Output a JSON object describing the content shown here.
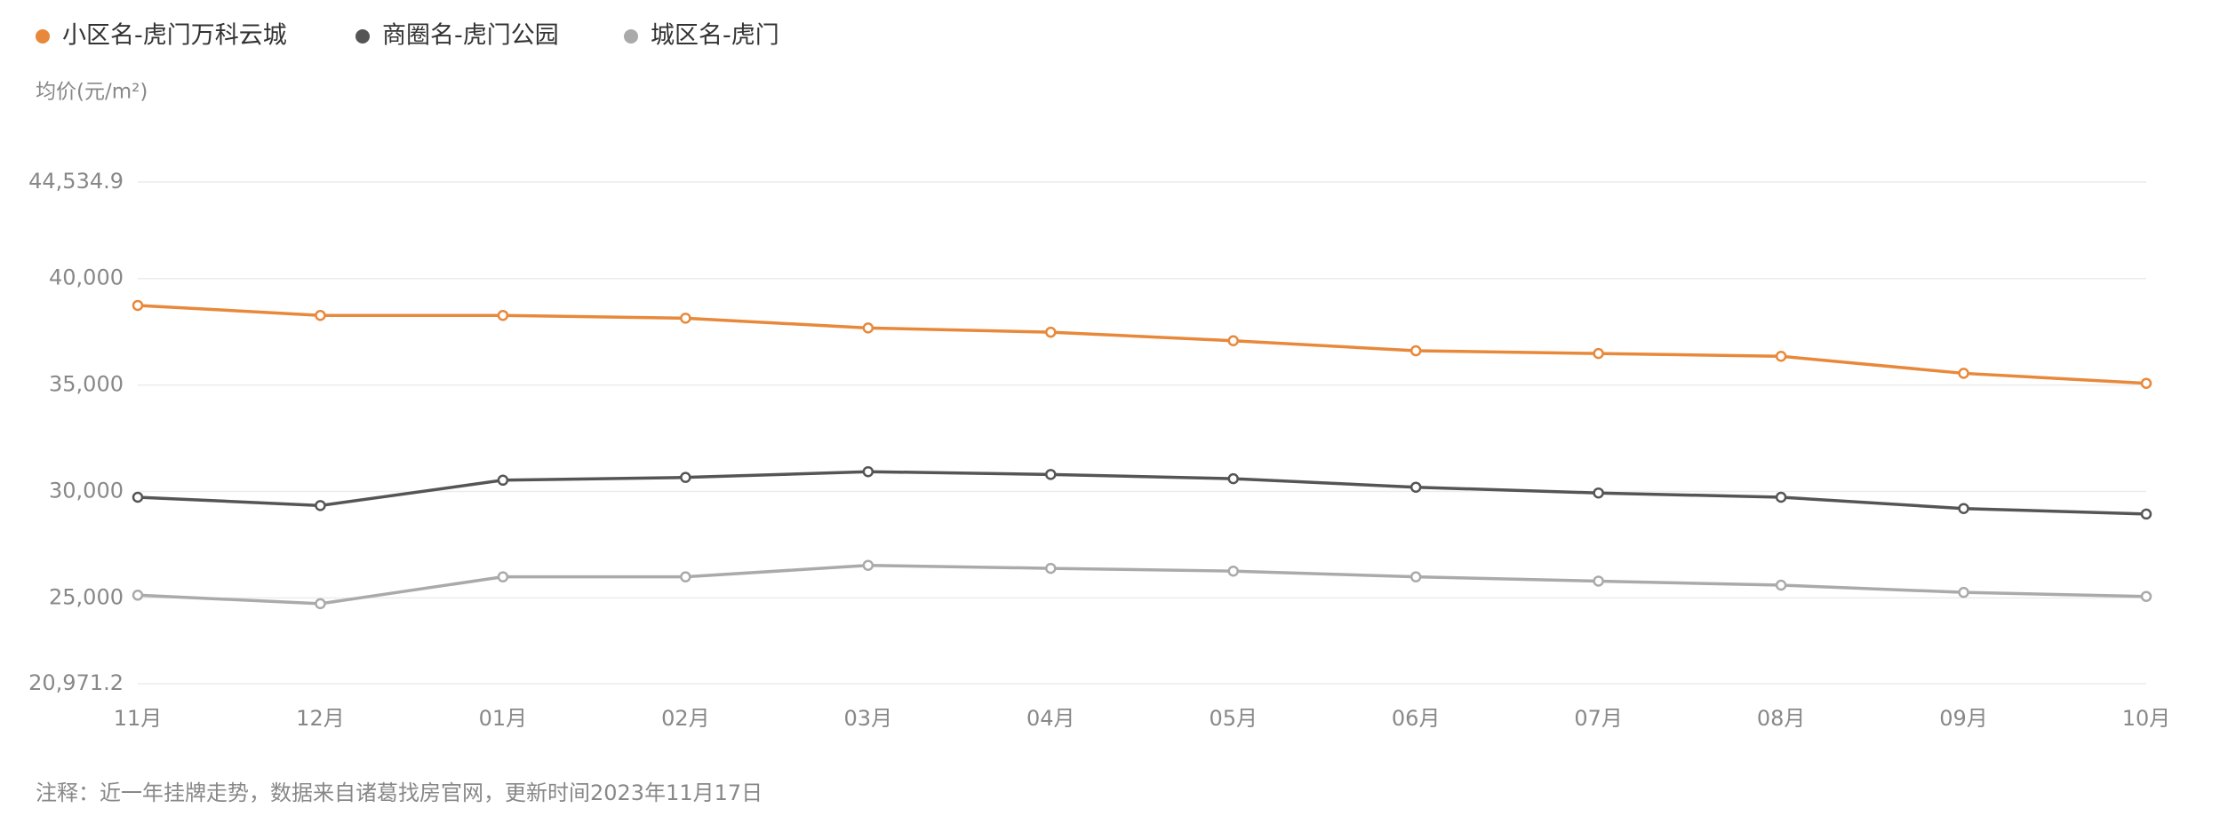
{
  "chart_data": {
    "type": "line",
    "y_label": "均价(元/m²)",
    "note": "注释：近一年挂牌走势，数据来自诸葛找房官网，更新时间2023年11月17日",
    "categories": [
      "11月",
      "12月",
      "01月",
      "02月",
      "03月",
      "04月",
      "05月",
      "06月",
      "07月",
      "08月",
      "09月",
      "10月"
    ],
    "series": [
      {
        "name": "小区名-虎门万科云城",
        "color": "#e8883a",
        "values": [
          38740,
          38270,
          38270,
          38140,
          37680,
          37480,
          37080,
          36610,
          36480,
          36350,
          35550,
          35080
        ]
      },
      {
        "name": "商圈名-虎门公园",
        "color": "#555555",
        "values": [
          29730,
          29340,
          30530,
          30660,
          30930,
          30800,
          30600,
          30200,
          29930,
          29730,
          29200,
          28940
        ]
      },
      {
        "name": "城区名-虎门",
        "color": "#aaaaaa",
        "values": [
          25130,
          24730,
          25990,
          25990,
          26530,
          26390,
          26260,
          25990,
          25790,
          25600,
          25260,
          25070
        ]
      }
    ],
    "ylim": [
      20971.2,
      44534.9
    ],
    "yticks": [
      {
        "value": 20971.2,
        "label": "20,971.2"
      },
      {
        "value": 25000,
        "label": "25,000"
      },
      {
        "value": 30000,
        "label": "30,000"
      },
      {
        "value": 35000,
        "label": "35,000"
      },
      {
        "value": 40000,
        "label": "40,000"
      },
      {
        "value": 44534.9,
        "label": "44,534.9"
      }
    ],
    "grid": true
  }
}
